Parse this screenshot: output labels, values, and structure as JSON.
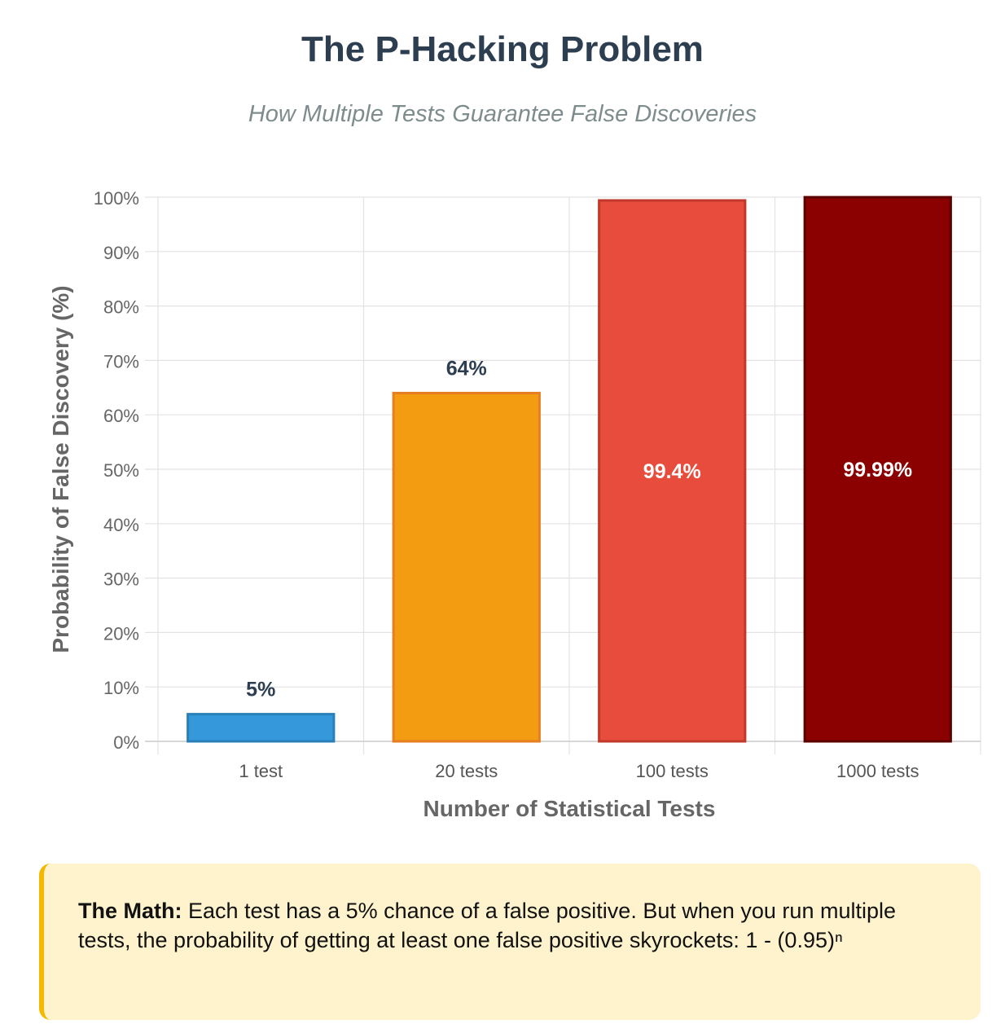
{
  "header": {
    "title": "The P-Hacking Problem",
    "subtitle": "How Multiple Tests Guarantee False Discoveries"
  },
  "chart_data": {
    "type": "bar",
    "categories": [
      "1 test",
      "20 tests",
      "100 tests",
      "1000 tests"
    ],
    "values": [
      5,
      64,
      99.4,
      99.99
    ],
    "data_labels": [
      "5%",
      "64%",
      "99.4%",
      "99.99%"
    ],
    "bar_colors": [
      "#3498db",
      "#f39c12",
      "#e74c3c",
      "#8b0000"
    ],
    "bar_border_colors": [
      "#2980b9",
      "#e67e22",
      "#c0392b",
      "#5c0000"
    ],
    "label_colors": [
      "#2c3e50",
      "#2c3e50",
      "#ffffff",
      "#ffffff"
    ],
    "xlabel": "Number of Statistical Tests",
    "ylabel": "Probability of False Discovery (%)",
    "ylim": [
      0,
      100
    ],
    "yticks": [
      "0%",
      "10%",
      "20%",
      "30%",
      "40%",
      "50%",
      "60%",
      "70%",
      "80%",
      "90%",
      "100%"
    ],
    "grid": true,
    "legend": "none"
  },
  "note": {
    "label": "The Math:",
    "text": " Each test has a 5% chance of a false positive. But when you run multiple tests, the probability of getting at least one false positive skyrockets: 1 - (0.95)ⁿ"
  }
}
